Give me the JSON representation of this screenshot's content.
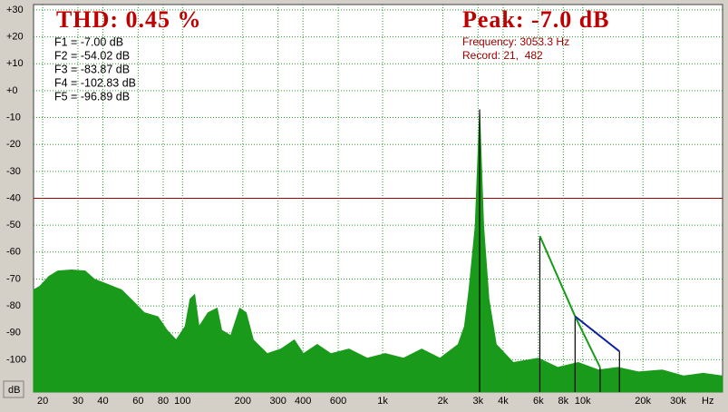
{
  "chart_data": {
    "type": "spectrum",
    "annotations": [
      "THD: 0.45 %",
      "Peak: -7.0 dB",
      "Frequency: 3053.3 Hz",
      "Record: 21,  482"
    ],
    "xlabel": "Hz",
    "ylabel": "dB",
    "xscale": "log",
    "xlim": [
      18,
      50000
    ],
    "ylim": [
      -112,
      32
    ],
    "grid": true,
    "xticks": [
      20,
      30,
      40,
      60,
      80,
      100,
      200,
      300,
      400,
      600,
      {
        "value": 1000,
        "label": "1k"
      },
      {
        "value": 2000,
        "label": "2k"
      },
      {
        "value": 3000,
        "label": "3k"
      },
      {
        "value": 4000,
        "label": "4k"
      },
      {
        "value": 6000,
        "label": "6k"
      },
      {
        "value": 8000,
        "label": "8k"
      },
      {
        "value": 10000,
        "label": "10k"
      },
      {
        "value": 20000,
        "label": "20k"
      },
      {
        "value": 30000,
        "label": "30k"
      }
    ],
    "yticks": [
      {
        "value": 30,
        "label": "+30"
      },
      {
        "value": 20,
        "label": "+20"
      },
      {
        "value": 10,
        "label": "+10"
      },
      {
        "value": 0,
        "label": "+0"
      },
      -10,
      -20,
      -30,
      -40,
      -50,
      -60,
      -70,
      -80,
      -90,
      -100
    ],
    "reference_line": {
      "value": -40,
      "color": "#a00000"
    },
    "series": [
      {
        "color": "#1a9a1a",
        "x": [
          18,
          19.3,
          21.5,
          23.8,
          27.9,
          32.6,
          36.2,
          42.4,
          49.6,
          58,
          64.4,
          75.4,
          83.7,
          92.9,
          103,
          109,
          115,
          121,
          134,
          149,
          157,
          174,
          193,
          208,
          226,
          265,
          310,
          362,
          402,
          471,
          551,
          679,
          837,
          1032,
          1272,
          1568,
          1933,
          2383,
          2563,
          2700,
          2900,
          3053.3,
          3200,
          3400,
          3700,
          4500,
          6000,
          7500,
          9500,
          12000,
          15000,
          19000,
          25000,
          32000,
          40000,
          50000
        ],
        "values": [
          -74,
          -72.7,
          -69,
          -67,
          -66.6,
          -67,
          -70,
          -72,
          -74,
          -79,
          -82.5,
          -84,
          -89,
          -92.6,
          -87.6,
          -77.4,
          -75.7,
          -87.6,
          -82.5,
          -80.8,
          -89,
          -91,
          -80.8,
          -82.5,
          -92.6,
          -97.7,
          -96,
          -92.6,
          -97.7,
          -94.3,
          -97.7,
          -96,
          -99.4,
          -97.7,
          -99.4,
          -96,
          -99.4,
          -94.3,
          -87.6,
          -74,
          -50.4,
          -7,
          -50.4,
          -77.4,
          -94.3,
          -101,
          -99.4,
          -102.8,
          -101,
          -103.8,
          -102.8,
          -104.5,
          -103.8,
          -106,
          -105,
          -106
        ]
      }
    ],
    "harmonics": {
      "color": "#000000",
      "x": [
        3053.3,
        6106.6,
        9159.9,
        12213.2,
        15266.5
      ],
      "values": [
        -7,
        -54.02,
        -83.87,
        -102.83,
        -96.89
      ],
      "value_labels": [
        "F1 = -7.00 dB",
        "F2 = -54.02 dB",
        "F3 = -83.87 dB",
        "F4 = -102.83 dB",
        "F5 = -96.89 dB"
      ]
    }
  }
}
